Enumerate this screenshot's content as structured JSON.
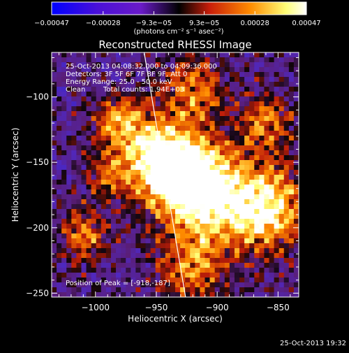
{
  "chart_data": {
    "type": "heatmap",
    "title": "Reconstructed RHESSI Image",
    "xlabel": "Heliocentric X (arcsec)",
    "ylabel": "Heliocentric Y (arcsec)",
    "x_ticks": [
      -1000,
      -950,
      -900,
      -850
    ],
    "y_ticks": [
      -100,
      -150,
      -200,
      -250
    ],
    "x_tick_labels": [
      "−1000",
      "−950",
      "−900",
      "−850"
    ],
    "y_tick_labels": [
      "−100",
      "−150",
      "−200",
      "−250"
    ],
    "xlim": [
      -1036,
      -833
    ],
    "ylim": [
      -253,
      -66
    ],
    "colorbar": {
      "min": -0.00047,
      "max": 0.00047,
      "ticks": [
        -0.00047,
        -0.00028,
        -9.3e-05,
        9.3e-05,
        0.00028,
        0.00047
      ],
      "tick_labels": [
        "−0.00047",
        "−0.00028",
        "−9.3e−05",
        "9.3e−05",
        "0.00028",
        "0.00047"
      ],
      "units_label": "(photons cm⁻² s⁻¹ asec⁻²)",
      "colors": [
        "#0000ff",
        "#6a1bc8",
        "#000000",
        "#c81e0a",
        "#ff8c00",
        "#ffff78",
        "#ffffff"
      ]
    },
    "annotations": {
      "time_range": "25-Oct-2013 04:08:32.000 to 04:09:36.000",
      "detectors": "Detectors: 3F 5F 6F 7F 8F 9F, Att 0",
      "energy_range": "Energy Range: 25.0 - 50.0 keV",
      "algorithm": "Clean",
      "total_counts": "Total counts: 1.94E+03",
      "peak_position": "Position of Peak = [-918,-187]"
    },
    "limb_line": {
      "x": [
        -960,
        -926
      ],
      "y": [
        -66,
        -253
      ]
    },
    "timestamp": "25-Oct-2013 19:32"
  }
}
